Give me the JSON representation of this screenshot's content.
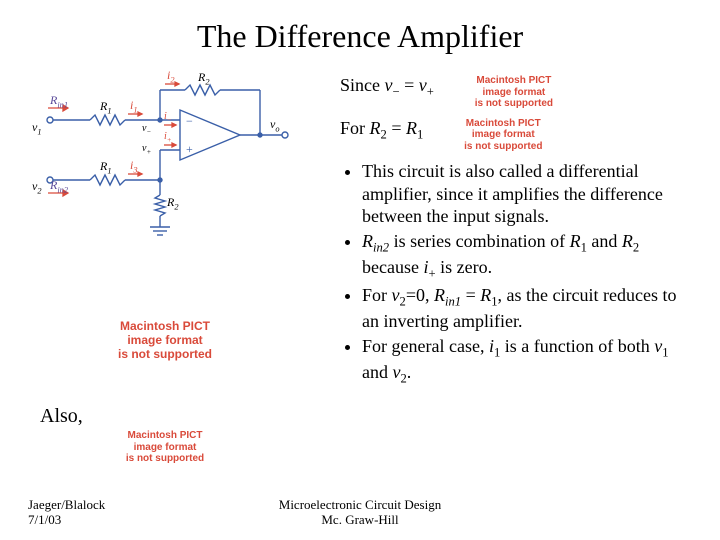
{
  "title": "The Difference Amplifier",
  "pict_error": {
    "l1": "Macintosh PICT",
    "l2": "image format",
    "l3": "is not supported"
  },
  "line1_prefix": "Since ",
  "line1_eq": "v₋ = v₊",
  "line2_prefix": "For ",
  "line2_eq": "R₂ = R₁",
  "bullets": [
    "This circuit is also called a differential amplifier, since it amplifies the difference between the input signals.",
    "<span class='ital'>R<sub>in2</sub></span> is series combination of <span class='ital'>R</span><sub>1</sub> and <span class='ital'>R</span><sub>2</sub> because <span class='ital'>i</span><sub>+</sub> is zero.",
    "For <span class='ital'>v</span><sub>2</sub>=0, <span class='ital'>R<sub>in1</sub></span> = <span class='ital'>R</span><sub>1</sub>, as the circuit reduces to an inverting amplifier.",
    "For general case, <span class='ital'>i</span><sub>1</sub> is a function of  both <span class='ital'>v</span><sub>1</sub> and <span class='ital'>v</span><sub>2</sub>."
  ],
  "also_label": "Also,",
  "footer": {
    "author": "Jaeger/Blalock",
    "date": "7/1/03",
    "book_l1": "Microelectronic Circuit Design",
    "book_l2": "Mc. Graw-Hill"
  },
  "circuit_labels": {
    "rin1": "R",
    "rin1_sub": "in1",
    "rin2": "R",
    "rin2_sub": "in2",
    "v1": "v",
    "v1_sub": "1",
    "v2": "v",
    "v2_sub": "2",
    "R1a": "R",
    "R1a_sub": "1",
    "R1b": "R",
    "R1b_sub": "1",
    "R2a": "R",
    "R2a_sub": "2",
    "R2b": "R",
    "R2b_sub": "2",
    "i1": "i",
    "i1_sub": "1",
    "i2": "i",
    "i2_sub": "2",
    "i3": "i",
    "i3_sub": "3",
    "im": "i",
    "im_sub": "−",
    "ip": "i",
    "ip_sub": "+",
    "vm": "v",
    "vm_sub": "−",
    "vp": "v",
    "vp_sub": "+",
    "vo": "v",
    "vo_sub": "o"
  },
  "colors": {
    "wire": "#3a5fa8",
    "arrow": "#d94a3a",
    "text_purple": "#5a4a9a"
  }
}
